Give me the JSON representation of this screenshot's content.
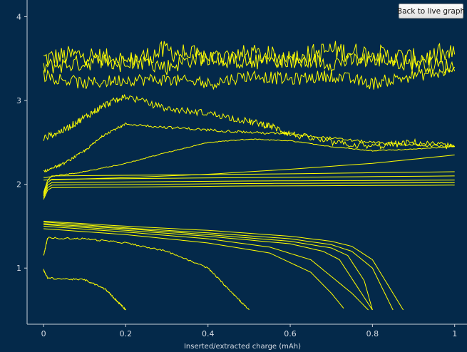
{
  "toolbar": {
    "live_button_label": "Back to live graph"
  },
  "colors": {
    "background": "#04294a",
    "series": "#ffff00",
    "axis": "#c9d1da"
  },
  "chart_data": {
    "type": "line",
    "title": "",
    "xlabel": "Inserted/extracted charge (mAh)",
    "ylabel": "",
    "xlim": [
      -0.04,
      1.03
    ],
    "ylim": [
      0.33,
      4.2
    ],
    "xticks": [
      0,
      0.2,
      0.4,
      0.6,
      0.8,
      1
    ],
    "xtick_labels": [
      "0",
      "0.2",
      "0.4",
      "0.6",
      "0.8",
      "1"
    ],
    "yticks": [
      1,
      2,
      3,
      4
    ],
    "ytick_labels": [
      "1",
      "2",
      "3",
      "4"
    ],
    "grid": false,
    "series": [
      {
        "color": "#ffff00",
        "noise": 0.25,
        "x": [
          0,
          0.1,
          0.2,
          0.3,
          0.4,
          0.5,
          0.6,
          0.7,
          0.8,
          0.9,
          1.0
        ],
        "y": [
          3.5,
          3.55,
          3.45,
          3.6,
          3.5,
          3.55,
          3.5,
          3.6,
          3.55,
          3.5,
          3.55
        ]
      },
      {
        "color": "#ffff00",
        "noise": 0.2,
        "x": [
          0,
          0.1,
          0.2,
          0.3,
          0.4,
          0.5,
          0.6,
          0.7,
          0.8,
          0.9,
          1.0
        ],
        "y": [
          3.4,
          3.45,
          3.5,
          3.4,
          3.55,
          3.45,
          3.5,
          3.45,
          3.5,
          3.45,
          3.4
        ]
      },
      {
        "color": "#ffff00",
        "noise": 0.15,
        "x": [
          0,
          0.1,
          0.2,
          0.3,
          0.4,
          0.5,
          0.6,
          0.7,
          0.8,
          0.9,
          1.0
        ],
        "y": [
          3.3,
          3.2,
          3.25,
          3.25,
          3.2,
          3.3,
          3.25,
          3.3,
          3.2,
          3.3,
          3.35
        ]
      },
      {
        "color": "#ffff00",
        "noise": 0.08,
        "x": [
          0,
          0.05,
          0.1,
          0.15,
          0.2,
          0.3,
          0.4,
          0.5,
          0.55,
          0.6,
          0.7,
          0.8,
          0.9,
          1.0
        ],
        "y": [
          2.55,
          2.65,
          2.8,
          2.95,
          3.05,
          2.9,
          2.85,
          2.75,
          2.7,
          2.6,
          2.5,
          2.45,
          2.5,
          2.45
        ]
      },
      {
        "color": "#ffff00",
        "noise": 0.03,
        "x": [
          0,
          0.05,
          0.1,
          0.15,
          0.2,
          0.3,
          0.4,
          0.5,
          0.6,
          0.7,
          0.8,
          0.9,
          1.0
        ],
        "y": [
          2.15,
          2.25,
          2.4,
          2.6,
          2.72,
          2.68,
          2.65,
          2.62,
          2.6,
          2.55,
          2.5,
          2.47,
          2.45
        ]
      },
      {
        "color": "#ffff00",
        "noise": 0.01,
        "x": [
          0,
          0.1,
          0.2,
          0.3,
          0.4,
          0.5,
          0.6,
          0.7,
          0.8,
          0.9,
          1.0
        ],
        "y": [
          2.08,
          2.15,
          2.25,
          2.38,
          2.5,
          2.54,
          2.52,
          2.45,
          2.4,
          2.42,
          2.45
        ]
      },
      {
        "color": "#ffff00",
        "noise": 0.0,
        "x": [
          0,
          0.2,
          0.4,
          0.6,
          0.8,
          0.9,
          1.0
        ],
        "y": [
          2.05,
          2.08,
          2.12,
          2.18,
          2.25,
          2.3,
          2.35
        ]
      },
      {
        "color": "#ffff00",
        "noise": 0.0,
        "x": [
          0,
          0.01,
          0.02,
          0.5,
          1.0
        ],
        "y": [
          1.9,
          2.05,
          2.1,
          2.12,
          2.15
        ]
      },
      {
        "color": "#ffff00",
        "noise": 0.0,
        "x": [
          0,
          0.01,
          0.02,
          0.5,
          1.0
        ],
        "y": [
          1.88,
          2.02,
          2.06,
          2.08,
          2.1
        ]
      },
      {
        "color": "#ffff00",
        "noise": 0.0,
        "x": [
          0,
          0.01,
          0.02,
          0.5,
          1.0
        ],
        "y": [
          1.86,
          1.99,
          2.02,
          2.04,
          2.05
        ]
      },
      {
        "color": "#ffff00",
        "noise": 0.0,
        "x": [
          0,
          0.01,
          0.02,
          0.5,
          1.0
        ],
        "y": [
          1.84,
          1.96,
          1.99,
          2.01,
          2.02
        ]
      },
      {
        "color": "#ffff00",
        "noise": 0.0,
        "x": [
          0,
          0.01,
          0.02,
          0.5,
          1.0
        ],
        "y": [
          1.82,
          1.93,
          1.96,
          1.98,
          1.99
        ]
      },
      {
        "color": "#ffff00",
        "noise": 0.0,
        "x": [
          0,
          0.2,
          0.4,
          0.6,
          0.7,
          0.75,
          0.8,
          0.85,
          0.875
        ],
        "y": [
          1.56,
          1.5,
          1.45,
          1.38,
          1.32,
          1.26,
          1.1,
          0.7,
          0.5
        ]
      },
      {
        "color": "#ffff00",
        "noise": 0.0,
        "x": [
          0,
          0.2,
          0.4,
          0.6,
          0.7,
          0.75,
          0.8,
          0.83,
          0.85
        ],
        "y": [
          1.55,
          1.48,
          1.42,
          1.35,
          1.28,
          1.2,
          1.0,
          0.7,
          0.5
        ]
      },
      {
        "color": "#ffff00",
        "noise": 0.0,
        "x": [
          0,
          0.2,
          0.4,
          0.6,
          0.7,
          0.74,
          0.78,
          0.8
        ],
        "y": [
          1.53,
          1.47,
          1.4,
          1.32,
          1.24,
          1.15,
          0.85,
          0.5
        ]
      },
      {
        "color": "#ffff00",
        "noise": 0.0,
        "x": [
          0,
          0.2,
          0.4,
          0.6,
          0.68,
          0.72,
          0.76,
          0.8
        ],
        "y": [
          1.52,
          1.45,
          1.38,
          1.29,
          1.2,
          1.1,
          0.8,
          0.5
        ]
      },
      {
        "color": "#ffff00",
        "noise": 0.0,
        "x": [
          0,
          0.2,
          0.4,
          0.55,
          0.65,
          0.7,
          0.75,
          0.79
        ],
        "y": [
          1.5,
          1.43,
          1.35,
          1.25,
          1.1,
          0.9,
          0.7,
          0.5
        ]
      },
      {
        "color": "#ffff00",
        "noise": 0.0,
        "x": [
          0,
          0.2,
          0.4,
          0.55,
          0.65,
          0.7,
          0.73
        ],
        "y": [
          1.47,
          1.4,
          1.3,
          1.18,
          0.95,
          0.7,
          0.52
        ]
      },
      {
        "color": "#ffff00",
        "noise": 0.02,
        "x": [
          0,
          0.01,
          0.1,
          0.2,
          0.3,
          0.4,
          0.45,
          0.5
        ],
        "y": [
          1.15,
          1.36,
          1.35,
          1.3,
          1.2,
          1.0,
          0.75,
          0.5
        ]
      },
      {
        "color": "#ffff00",
        "noise": 0.02,
        "x": [
          0,
          0.01,
          0.1,
          0.15,
          0.18,
          0.2
        ],
        "y": [
          0.98,
          0.88,
          0.86,
          0.75,
          0.6,
          0.5
        ]
      }
    ]
  }
}
